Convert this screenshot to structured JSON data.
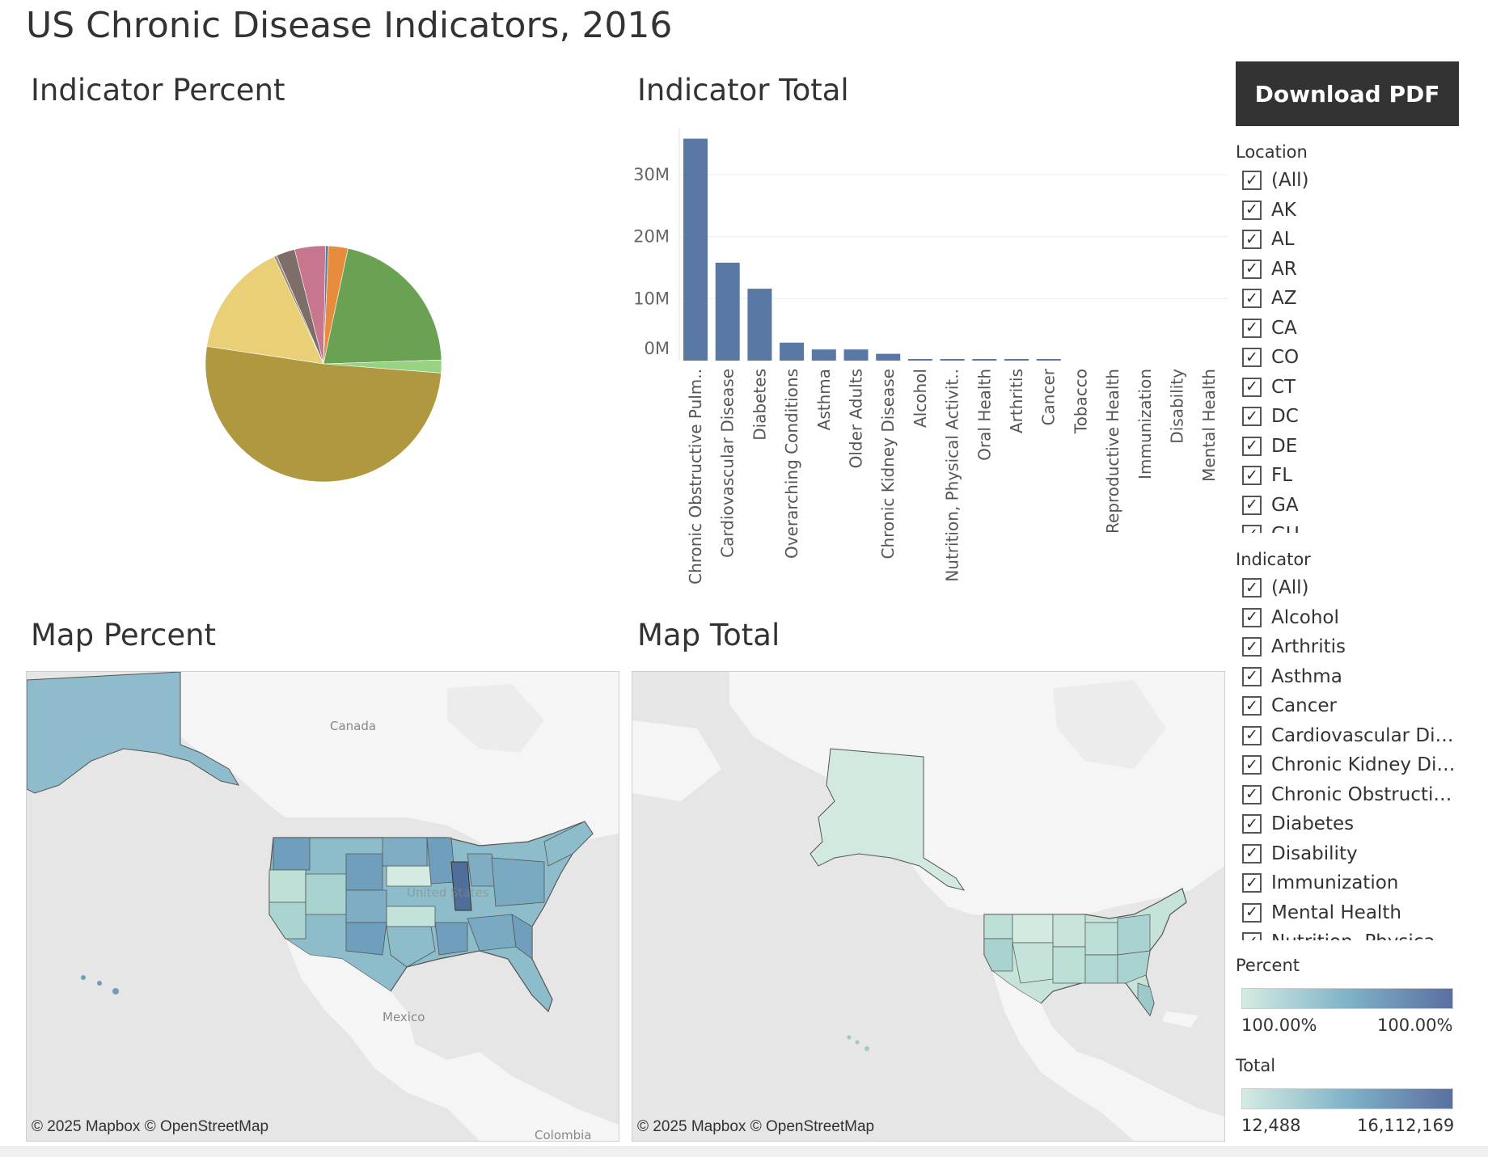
{
  "page": {
    "title": "US Chronic Disease Indicators, 2016",
    "download_label": "Download PDF"
  },
  "sheets": {
    "pie_title": "Indicator Percent",
    "bar_title": "Indicator Total",
    "map_percent_title": "Map Percent",
    "map_total_title": "Map Total"
  },
  "colors": {
    "bar": "#5a78a4",
    "legend_low": "#d4ebe1",
    "legend_mid": "#7fb3c8",
    "legend_high": "#5a6fa0",
    "download_bg": "#333333",
    "land": "#f5f5f5",
    "water": "#e6e6e6"
  },
  "chart_data": [
    {
      "type": "pie",
      "title": "Indicator Percent",
      "series": [
        {
          "name": "Green",
          "value": 21.5,
          "color": "#6aa153"
        },
        {
          "name": "Light green",
          "value": 1.8,
          "color": "#98d283"
        },
        {
          "name": "Olive",
          "value": 52.0,
          "color": "#b09840"
        },
        {
          "name": "Yellow",
          "value": 16.0,
          "color": "#e9cf75"
        },
        {
          "name": "Brown-light",
          "value": 0.4,
          "color": "#a08f70"
        },
        {
          "name": "Gray-brown",
          "value": 2.6,
          "color": "#7d6e6a"
        },
        {
          "name": "Pink",
          "value": 4.3,
          "color": "#c8758e"
        },
        {
          "name": "Blue sliver",
          "value": 0.4,
          "color": "#5a78a4"
        },
        {
          "name": "Orange",
          "value": 2.7,
          "color": "#e68c3c"
        }
      ]
    },
    {
      "type": "bar",
      "title": "Indicator Total",
      "categories": [
        "Chronic Obstructive Pulm..",
        "Cardiovascular Disease",
        "Diabetes",
        "Overarching Conditions",
        "Asthma",
        "Older Adults",
        "Chronic Kidney Disease",
        "Alcohol",
        "Nutrition, Physical Activit..",
        "Oral Health",
        "Arthritis",
        "Cancer",
        "Tobacco",
        "Reproductive Health",
        "Immunization",
        "Disability",
        "Mental Health"
      ],
      "values": [
        35800000,
        15800000,
        11600000,
        2900000,
        1800000,
        1800000,
        1100000,
        200000,
        150000,
        150000,
        120000,
        100000,
        0,
        0,
        0,
        0,
        0
      ],
      "ylim": [
        0,
        36000000
      ],
      "yticks": [
        0,
        10000000,
        20000000,
        30000000
      ],
      "ytick_labels": [
        "0M",
        "10M",
        "20M",
        "30M"
      ],
      "grid": true
    }
  ],
  "filters": {
    "location": {
      "title": "Location",
      "items": [
        "(All)",
        "AK",
        "AL",
        "AR",
        "AZ",
        "CA",
        "CO",
        "CT",
        "DC",
        "DE",
        "FL",
        "GA",
        "GU"
      ]
    },
    "indicator": {
      "title": "Indicator",
      "items": [
        "(All)",
        "Alcohol",
        "Arthritis",
        "Asthma",
        "Cancer",
        "Cardiovascular Dise...",
        "Chronic Kidney Dise...",
        "Chronic Obstructive ...",
        "Diabetes",
        "Disability",
        "Immunization",
        "Mental Health",
        "Nutrition, Physical A..."
      ]
    },
    "check_glyph": "✓"
  },
  "legends": {
    "percent": {
      "title": "Percent",
      "min": "100.00%",
      "max": "100.00%"
    },
    "total": {
      "title": "Total",
      "min": "12,488",
      "max": "16,112,169"
    }
  },
  "maps": {
    "attribution": "© 2025 Mapbox  © OpenStreetMap",
    "labels": {
      "canada": "Canada",
      "mexico": "Mexico",
      "united_states": "United States",
      "colombia": "Colombia"
    }
  }
}
